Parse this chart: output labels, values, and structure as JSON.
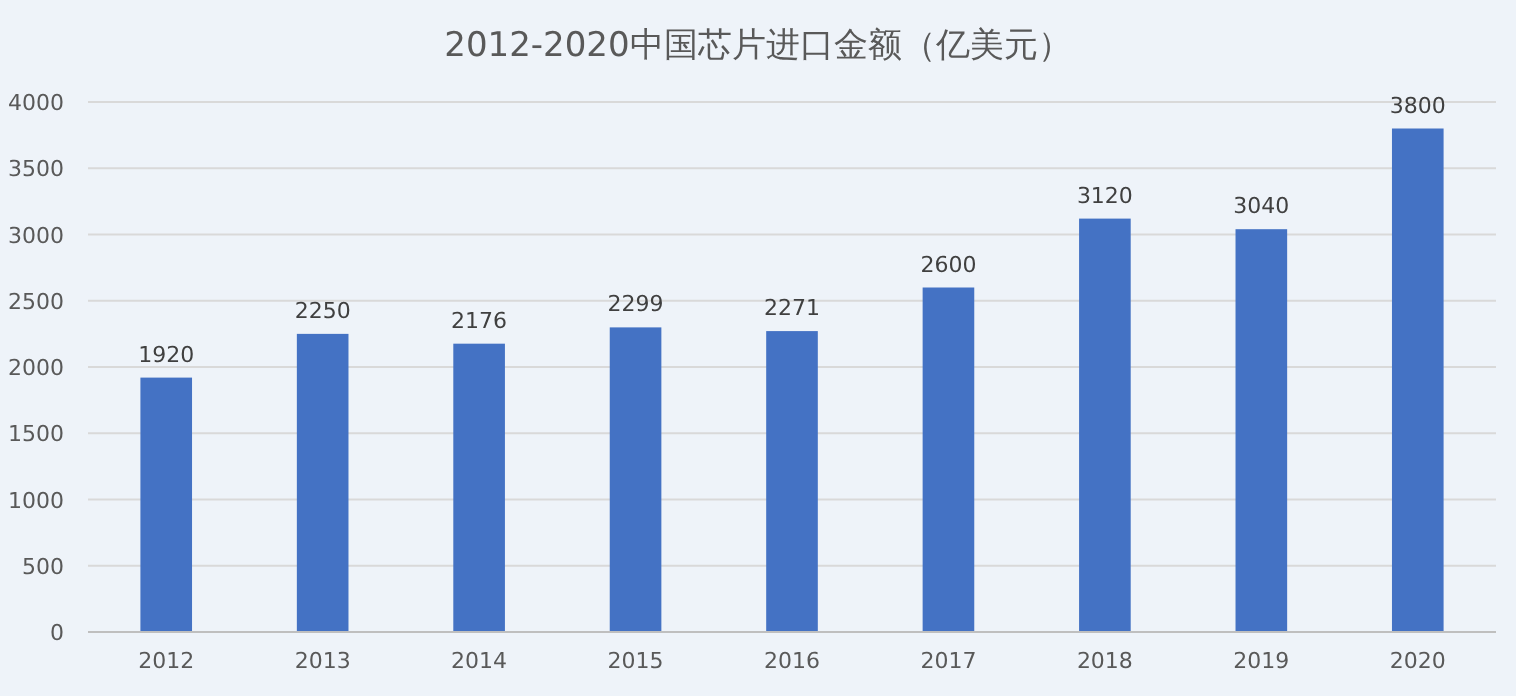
{
  "chart_data": {
    "type": "bar",
    "title": "2012-2020中国芯片进口金额（亿美元）",
    "categories": [
      "2012",
      "2013",
      "2014",
      "2015",
      "2016",
      "2017",
      "2018",
      "2019",
      "2020"
    ],
    "values": [
      1920,
      2250,
      2176,
      2299,
      2271,
      2600,
      3120,
      3040,
      3800
    ],
    "color": "#4472c4",
    "ylim": [
      0,
      4000
    ],
    "yticks": [
      0,
      500,
      1000,
      1500,
      2000,
      2500,
      3000,
      3500,
      4000
    ],
    "grid": "y",
    "data_labels": true
  }
}
